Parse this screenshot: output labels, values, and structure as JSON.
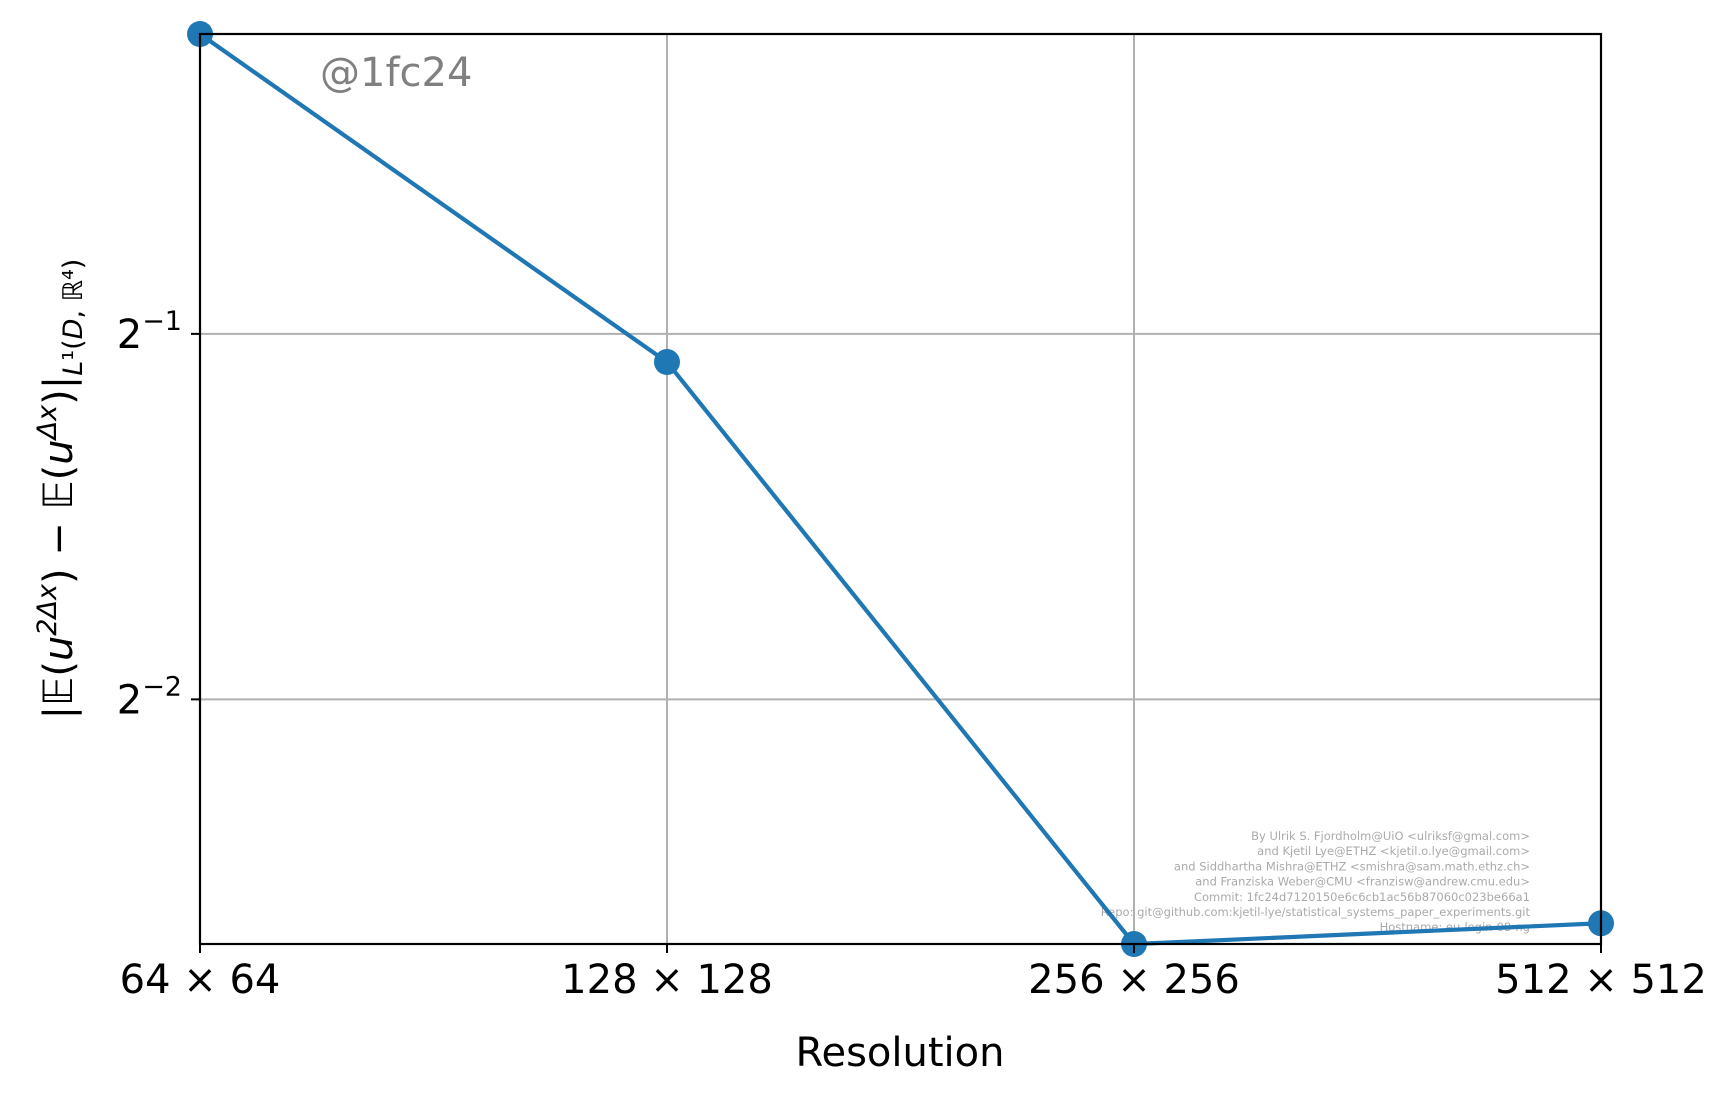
{
  "chart_data": {
    "type": "line",
    "categories": [
      "64 × 64",
      "128 × 128",
      "256 × 256",
      "512 × 512"
    ],
    "x": [
      64,
      128,
      256,
      512
    ],
    "series": [
      {
        "values": [
          0.883,
          0.474,
          0.1572,
          0.1635
        ],
        "color": "#1f77b4",
        "marker": "circle"
      }
    ],
    "xlabel": "Resolution",
    "ylabel": "|𝔼(u^{2Δx}) − 𝔼(u^{Δx})|_{L¹(D, ℝ⁴)}",
    "xscale": "log2",
    "yscale": "log2",
    "ylim": [
      0.1572,
      0.883
    ],
    "yticks": [
      0.5,
      0.25
    ],
    "ytick_labels": [
      {
        "base": "2",
        "exp": "−1"
      },
      {
        "base": "2",
        "exp": "−2"
      }
    ],
    "grid": true,
    "watermark": "@1fc24",
    "credits": [
      "By Ulrik S. Fjordholm@UiO <ulriksf@gmal.com>",
      "and Kjetil Lye@ETHZ <kjetil.o.lye@gmail.com>",
      "and Siddhartha Mishra@ETHZ <smishra@sam.math.ethz.ch>",
      "and Franziska Weber@CMU <franzisw@andrew.cmu.edu>",
      "Commit: 1fc24d7120150e6c6cb1ac56b87060c023be66a1",
      "Repo: git@github.com:kjetil-lye/statistical_systems_paper_experiments.git",
      "Hostname: eu-login-08-ng"
    ]
  }
}
